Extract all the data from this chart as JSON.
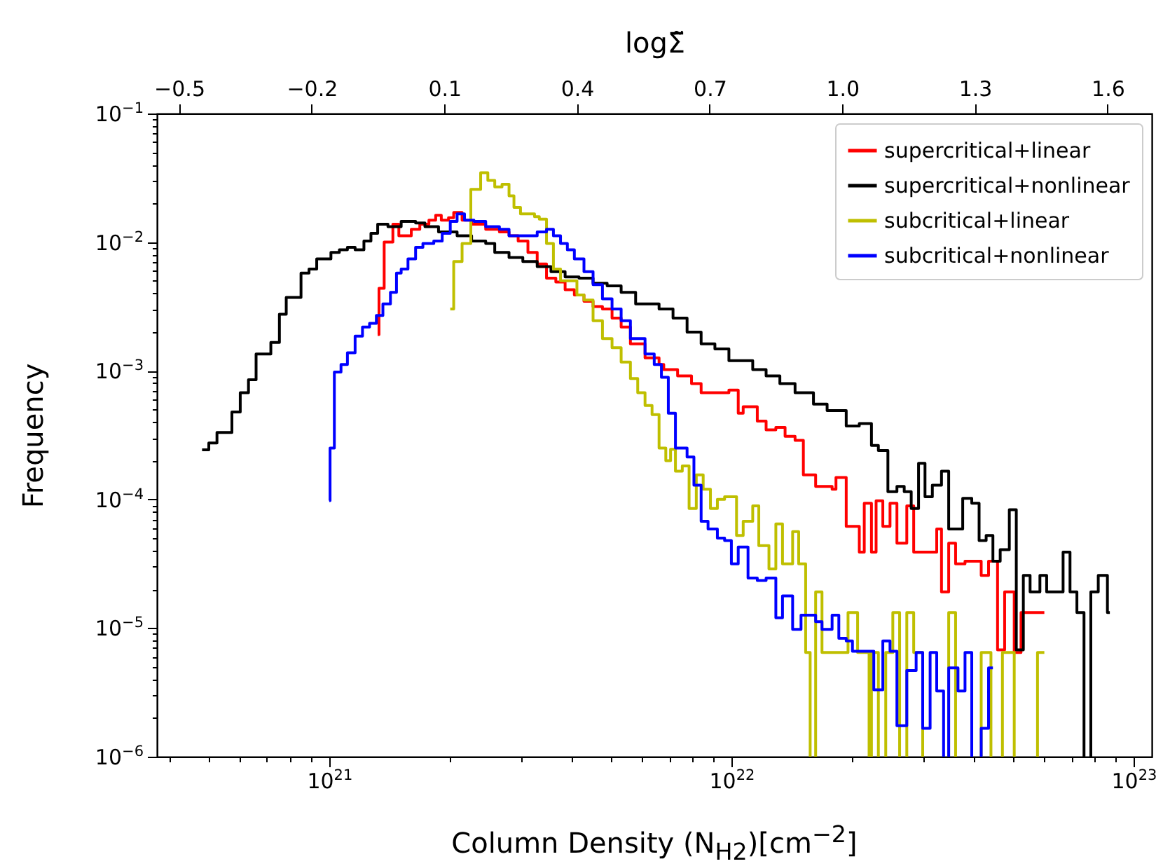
{
  "chart_data": {
    "type": "step",
    "xlabel": "Column Density (N$_{H2}$)[cm$^{−2}$]",
    "ylabel": "Frequency",
    "x2label": "logΣ̃",
    "log": "xy",
    "legend": "top right",
    "xlim": [
      3.73e+20,
      1.11e+23
    ],
    "ylim": [
      1e-06,
      0.1
    ],
    "x2lim": [
      -0.55,
      1.7
    ],
    "xticks": [
      {
        "value": 4e+20,
        "label": null
      },
      {
        "value": 5e+20,
        "label": null
      },
      {
        "value": 6e+20,
        "label": null
      },
      {
        "value": 7e+20,
        "label": null
      },
      {
        "value": 8e+20,
        "label": null
      },
      {
        "value": 9e+20,
        "label": null
      },
      {
        "value": 1e+21,
        "label": "10$^{21}$"
      },
      {
        "value": 2e+21,
        "label": null
      },
      {
        "value": 3e+21,
        "label": null
      },
      {
        "value": 4e+21,
        "label": null
      },
      {
        "value": 5e+21,
        "label": null
      },
      {
        "value": 6e+21,
        "label": null
      },
      {
        "value": 7e+21,
        "label": null
      },
      {
        "value": 8e+21,
        "label": null
      },
      {
        "value": 9e+21,
        "label": null
      },
      {
        "value": 1e+22,
        "label": "10$^{22}$"
      },
      {
        "value": 2e+22,
        "label": null
      },
      {
        "value": 3e+22,
        "label": null
      },
      {
        "value": 4e+22,
        "label": null
      },
      {
        "value": 5e+22,
        "label": null
      },
      {
        "value": 6e+22,
        "label": null
      },
      {
        "value": 7e+22,
        "label": null
      },
      {
        "value": 8e+22,
        "label": null
      },
      {
        "value": 9e+22,
        "label": null
      },
      {
        "value": 1e+23,
        "label": "10$^{23}$"
      }
    ],
    "yticks": [
      {
        "value": 1e-06,
        "label": "10$^{−6}$"
      },
      {
        "value": 2e-06,
        "label": null
      },
      {
        "value": 3e-06,
        "label": null
      },
      {
        "value": 4e-06,
        "label": null
      },
      {
        "value": 5e-06,
        "label": null
      },
      {
        "value": 6e-06,
        "label": null
      },
      {
        "value": 7e-06,
        "label": null
      },
      {
        "value": 8e-06,
        "label": null
      },
      {
        "value": 9e-06,
        "label": null
      },
      {
        "value": 1e-05,
        "label": "10$^{−5}$"
      },
      {
        "value": 2e-05,
        "label": null
      },
      {
        "value": 3e-05,
        "label": null
      },
      {
        "value": 4e-05,
        "label": null
      },
      {
        "value": 5e-05,
        "label": null
      },
      {
        "value": 6e-05,
        "label": null
      },
      {
        "value": 7e-05,
        "label": null
      },
      {
        "value": 8e-05,
        "label": null
      },
      {
        "value": 9e-05,
        "label": null
      },
      {
        "value": 0.0001,
        "label": "10$^{−4}$"
      },
      {
        "value": 0.0002,
        "label": null
      },
      {
        "value": 0.0003,
        "label": null
      },
      {
        "value": 0.0004,
        "label": null
      },
      {
        "value": 0.0005,
        "label": null
      },
      {
        "value": 0.0006,
        "label": null
      },
      {
        "value": 0.0007,
        "label": null
      },
      {
        "value": 0.0008,
        "label": null
      },
      {
        "value": 0.0009,
        "label": null
      },
      {
        "value": 0.001,
        "label": "10$^{−3}$"
      },
      {
        "value": 0.002,
        "label": null
      },
      {
        "value": 0.003,
        "label": null
      },
      {
        "value": 0.004,
        "label": null
      },
      {
        "value": 0.005,
        "label": null
      },
      {
        "value": 0.006,
        "label": null
      },
      {
        "value": 0.007,
        "label": null
      },
      {
        "value": 0.008,
        "label": null
      },
      {
        "value": 0.009,
        "label": null
      },
      {
        "value": 0.01,
        "label": "10$^{−2}$"
      },
      {
        "value": 0.02,
        "label": null
      },
      {
        "value": 0.03,
        "label": null
      },
      {
        "value": 0.04,
        "label": null
      },
      {
        "value": 0.05,
        "label": null
      },
      {
        "value": 0.06,
        "label": null
      },
      {
        "value": 0.07,
        "label": null
      },
      {
        "value": 0.08,
        "label": null
      },
      {
        "value": 0.09,
        "label": null
      },
      {
        "value": 0.1,
        "label": "10$^{−1}$"
      }
    ],
    "x2ticks": [
      {
        "value": -0.5,
        "label": "−0.5"
      },
      {
        "value": -0.2,
        "label": "−0.2"
      },
      {
        "value": 0.1,
        "label": "0.1"
      },
      {
        "value": 0.4,
        "label": "0.4"
      },
      {
        "value": 0.7,
        "label": "0.7"
      },
      {
        "value": 1.0,
        "label": "1.0"
      },
      {
        "value": 1.3,
        "label": "1.3"
      },
      {
        "value": 1.6,
        "label": "1.6"
      }
    ],
    "series": [
      {
        "name": "supercritical+linear",
        "color": "#ff0000",
        "x": [
          1.32e+21,
          1.33e+21,
          1.37e+21,
          1.44e+21,
          1.49e+21,
          1.6e+21,
          1.68e+21,
          1.77e+21,
          1.84e+21,
          1.9e+21,
          1.98e+21,
          2.04e+21,
          2.14e+21,
          2.26e+21,
          2.45e+21,
          2.65e+21,
          2.8e+21,
          2.95e+21,
          3.12e+21,
          3.29e+21,
          3.47e+21,
          3.66e+21,
          3.86e+21,
          4.07e+21,
          4.3e+21,
          4.53e+21,
          4.78e+21,
          5.05e+21,
          5.32e+21,
          5.61e+21,
          6.1e+21,
          6.61e+21,
          6.79e+21,
          7.35e+21,
          7.96e+21,
          8.41e+21,
          9.86e+21,
          1.04e+22,
          1.07e+22,
          1.16e+22,
          1.22e+22,
          1.29e+22,
          1.36e+22,
          1.44e+22,
          1.51e+22,
          1.62e+22,
          1.78e+22,
          1.82e+22,
          1.93e+22,
          2.08e+22,
          2.14e+22,
          2.23e+22,
          2.29e+22,
          2.38e+22,
          2.48e+22,
          2.58e+22,
          2.73e+22,
          2.84e+22,
          3.24e+22,
          3.33e+22,
          3.47e+22,
          3.61e+22,
          3.81e+22,
          4.18e+22,
          4.36e+22,
          4.59e+22,
          4.78e+22,
          5.05e+22,
          5.25e+22,
          6e+22
        ],
        "values": [
          0.00191,
          0.00437,
          0.01,
          0.0138,
          0.0112,
          0.0126,
          0.0138,
          0.0148,
          0.0162,
          0.0148,
          0.0155,
          0.017,
          0.0148,
          0.0138,
          0.0126,
          0.012,
          0.0112,
          0.0102,
          0.00832,
          0.00676,
          0.00525,
          0.0049,
          0.00427,
          0.00389,
          0.00347,
          0.00316,
          0.00302,
          0.00257,
          0.00219,
          0.00162,
          0.00126,
          0.00112,
          0.00102,
          0.000912,
          0.000794,
          0.000676,
          0.000708,
          0.000468,
          0.000525,
          0.000407,
          0.000347,
          0.000363,
          0.000309,
          0.000288,
          0.000155,
          0.000126,
          0.00012,
          0.000148,
          6.17e-05,
          3.89e-05,
          9.33e-05,
          3.89e-05,
          9.77e-05,
          6.17e-05,
          9.33e-05,
          4.57e-05,
          8.91e-05,
          3.89e-05,
          5.89e-05,
          1.91e-05,
          4.57e-05,
          3.16e-05,
          3.31e-05,
          2.57e-05,
          3.31e-05,
          6.76e-06,
          1.91e-05,
          6.46e-06,
          1.32e-05,
          1.32e-05
        ]
      },
      {
        "name": "supercritical+nonlinear",
        "color": "#000000",
        "x": [
          4.83e+20,
          5.02e+20,
          5.26e+20,
          5.73e+20,
          6.01e+20,
          6.3e+20,
          6.58e+20,
          7.16e+20,
          7.52e+20,
          7.82e+20,
          8.51e+20,
          8.91e+20,
          9.31e+20,
          1.01e+21,
          1.06e+21,
          1.11e+21,
          1.16e+21,
          1.22e+21,
          1.27e+21,
          1.32e+21,
          1.4e+21,
          1.51e+21,
          1.64e+21,
          1.73e+21,
          1.87e+21,
          2.08e+21,
          2.26e+21,
          2.45e+21,
          2.58e+21,
          2.8e+21,
          3.03e+21,
          3.29e+21,
          3.56e+21,
          3.86e+21,
          4.18e+21,
          4.53e+21,
          4.91e+21,
          5.32e+21,
          5.78e+21,
          6.61e+21,
          7.16e+21,
          7.76e+21,
          8.41e+21,
          9.1e+21,
          9.86e+21,
          1.13e+22,
          1.22e+22,
          1.32e+22,
          1.44e+22,
          1.6e+22,
          1.73e+22,
          1.93e+22,
          2.08e+22,
          2.23e+22,
          2.32e+22,
          2.45e+22,
          2.58e+22,
          2.69e+22,
          2.8e+22,
          2.92e+22,
          3.03e+22,
          3.16e+22,
          3.33e+22,
          3.47e+22,
          3.76e+22,
          3.96e+22,
          4.13e+22,
          4.3e+22,
          4.47e+22,
          4.66e+22,
          4.91e+22,
          5.11e+22,
          5.32e+22,
          5.53e+22,
          5.85e+22,
          6.08e+22,
          6.68e+22,
          6.95e+22,
          7.23e+22,
          7.53e+22,
          7.83e+22,
          8.17e+22,
          8.61e+22,
          8.73e+22
        ],
        "values": [
          0.000243,
          0.000275,
          0.000331,
          0.000479,
          0.000676,
          0.000851,
          0.00135,
          0.00166,
          0.00275,
          0.00372,
          0.00575,
          0.00617,
          0.00741,
          0.00832,
          0.00871,
          0.00912,
          0.00871,
          0.0102,
          0.0117,
          0.0138,
          0.0132,
          0.0145,
          0.0141,
          0.0132,
          0.012,
          0.0112,
          0.0102,
          0.00977,
          0.00832,
          0.00759,
          0.00708,
          0.00646,
          0.00589,
          0.00537,
          0.00525,
          0.00479,
          0.00457,
          0.00407,
          0.00331,
          0.00302,
          0.00257,
          0.002,
          0.00162,
          0.00148,
          0.0012,
          0.00102,
          0.000912,
          0.000794,
          0.000676,
          0.00055,
          0.00049,
          0.000372,
          0.000389,
          0.000263,
          0.00024,
          0.000115,
          0.000126,
          0.000115,
          8.51e-05,
          0.000191,
          0.000105,
          0.000129,
          0.000166,
          5.89e-05,
          0.000102,
          9.33e-05,
          4.79e-05,
          5.25e-05,
          3.31e-05,
          4.07e-05,
          8.32e-05,
          6.76e-06,
          2.57e-05,
          1.91e-05,
          2.57e-05,
          1.91e-05,
          3.89e-05,
          1.91e-05,
          1.32e-05,
          null,
          1.91e-05,
          2.57e-05,
          1.32e-05,
          1.32e-05
        ]
      },
      {
        "name": "subcritical+linear",
        "color": "#bfbf00",
        "x": [
          2e+21,
          2.04e+21,
          2.14e+21,
          2.25e+21,
          2.38e+21,
          2.48e+21,
          2.58e+21,
          2.69e+21,
          2.8e+21,
          2.88e+21,
          2.99e+21,
          3.24e+21,
          3.33e+21,
          3.47e+21,
          3.61e+21,
          3.76e+21,
          4.13e+21,
          4.3e+21,
          4.53e+21,
          4.78e+21,
          5.05e+21,
          5.32e+21,
          5.61e+21,
          5.85e+21,
          6.1e+21,
          6.35e+21,
          6.61e+21,
          6.87e+21,
          7.06e+21,
          7.26e+21,
          7.55e+21,
          7.85e+21,
          8.18e+21,
          8.51e+21,
          8.87e+21,
          9.23e+21,
          9.62e+21,
          1.03e+22,
          1.07e+22,
          1.13e+22,
          1.17e+22,
          1.24e+22,
          1.29e+22,
          1.34e+22,
          1.42e+22,
          1.47e+22,
          1.53e+22,
          1.57e+22,
          1.62e+22,
          1.68e+22,
          1.75e+22,
          1.95e+22,
          2.06e+22,
          2.2e+22,
          2.23e+22,
          2.32e+22,
          2.42e+22,
          2.52e+22,
          2.62e+22,
          2.73e+22,
          2.84e+22,
          2.99e+22,
          3.47e+22,
          3.61e+22,
          4.18e+22,
          4.42e+22,
          4.72e+22,
          5.05e+22,
          5.77e+22,
          6e+22
        ],
        "values": [
          0.00302,
          0.00708,
          0.00977,
          0.0257,
          0.0347,
          0.0302,
          0.0269,
          0.0282,
          0.0229,
          0.0186,
          0.0166,
          0.0158,
          0.0151,
          0.00977,
          0.00617,
          0.00501,
          0.00389,
          0.00355,
          0.00245,
          0.00178,
          0.00151,
          0.00117,
          0.000871,
          0.000676,
          0.000537,
          0.000457,
          0.000251,
          0.0002,
          0.000245,
          0.000166,
          0.000182,
          8.51e-05,
          0.000155,
          0.00012,
          8.51e-05,
          0.0001,
          0.000105,
          5.25e-05,
          6.76e-05,
          8.91e-05,
          4.37e-05,
          2.88e-05,
          6.46e-05,
          3.16e-05,
          5.62e-05,
          3.16e-05,
          6.46e-06,
          null,
          1.91e-05,
          6.46e-06,
          6.46e-06,
          1.32e-05,
          6.46e-06,
          null,
          6.46e-06,
          null,
          6.46e-06,
          1.32e-05,
          null,
          1.32e-05,
          6.46e-06,
          null,
          1.32e-05,
          null,
          6.46e-06,
          null,
          6.46e-06,
          null,
          6.46e-06,
          6.46e-06
        ]
      },
      {
        "name": "subcritical+nonlinear",
        "color": "#0000ff",
        "x": [
          1e+21,
          1.005e+21,
          1.03e+21,
          1.07e+21,
          1.11e+21,
          1.16e+21,
          1.21e+21,
          1.26e+21,
          1.31e+21,
          1.36e+21,
          1.42e+21,
          1.47e+21,
          1.51e+21,
          1.57e+21,
          1.64e+21,
          1.71e+21,
          1.82e+21,
          1.91e+21,
          2e+21,
          2.08e+21,
          2.17e+21,
          2.29e+21,
          2.45e+21,
          2.65e+21,
          2.8e+21,
          3.29e+21,
          3.47e+21,
          3.61e+21,
          3.76e+21,
          3.91e+21,
          4.07e+21,
          4.3e+21,
          4.53e+21,
          4.78e+21,
          5.05e+21,
          5.32e+21,
          5.61e+21,
          6.1e+21,
          6.43e+21,
          6.7e+21,
          6.97e+21,
          7.26e+21,
          7.76e+21,
          8.07e+21,
          8.41e+21,
          8.75e+21,
          9.23e+21,
          9.62e+21,
          1e+22,
          1.04e+22,
          1.1e+22,
          1.16e+22,
          1.22e+22,
          1.29e+22,
          1.34e+22,
          1.42e+22,
          1.49e+22,
          1.62e+22,
          1.68e+22,
          1.78e+22,
          1.85e+22,
          1.93e+22,
          2e+22,
          2.26e+22,
          2.38e+22,
          2.48e+22,
          2.58e+22,
          2.73e+22,
          2.88e+22,
          2.99e+22,
          3.12e+22,
          3.24e+22,
          3.37e+22,
          3.47e+22,
          3.66e+22,
          3.81e+22,
          3.96e+22,
          4.18e+22,
          4.36e+22,
          4.47e+22
        ],
        "values": [
          9.8e-05,
          0.000251,
          0.000977,
          0.00112,
          0.00138,
          0.00186,
          0.00219,
          0.00234,
          0.00269,
          0.00331,
          0.00407,
          0.00575,
          0.00617,
          0.00741,
          0.00912,
          0.00977,
          0.0102,
          0.0117,
          0.0145,
          0.0166,
          0.0148,
          0.0145,
          0.0132,
          0.0126,
          0.0112,
          0.012,
          0.0126,
          0.0112,
          0.00977,
          0.00871,
          0.00741,
          0.00589,
          0.00468,
          0.00363,
          0.00302,
          0.00245,
          0.00178,
          0.00135,
          0.00112,
          0.000891,
          0.000468,
          0.000251,
          0.000214,
          0.000129,
          6.76e-05,
          5.89e-05,
          5.01e-05,
          4.79e-05,
          3.16e-05,
          4.27e-05,
          2.45e-05,
          2.34e-05,
          2.45e-05,
          1.2e-05,
          1.78e-05,
          9.77e-06,
          1.26e-05,
          1.12e-05,
          9.77e-06,
          1.26e-05,
          8.32e-06,
          7.94e-06,
          6.61e-06,
          3.31e-06,
          7.94e-06,
          6.61e-06,
          1.74e-06,
          4.68e-06,
          6.46e-06,
          1.66e-06,
          6.46e-06,
          3.24e-06,
          null,
          4.9e-06,
          3.24e-06,
          6.46e-06,
          null,
          1.66e-06,
          4.9e-06,
          4.9e-06
        ]
      }
    ]
  }
}
